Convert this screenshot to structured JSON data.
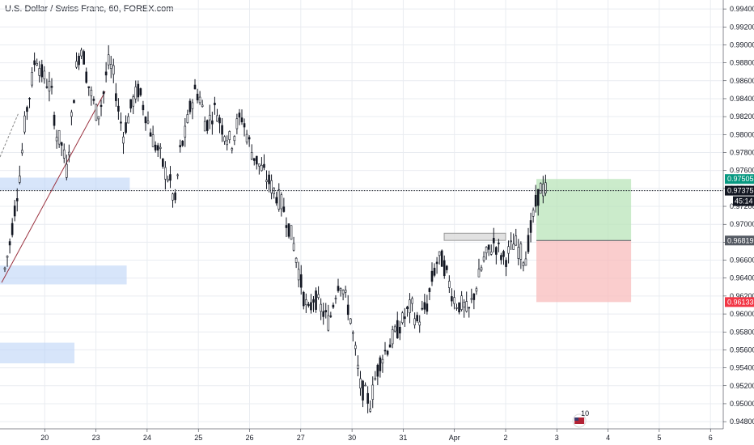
{
  "header": {
    "title": "U.S. Dollar / Swiss Franc, 60, FOREX.com"
  },
  "colors": {
    "up": "#26a69a",
    "candle": "#131722",
    "grid": "#e9ecf1",
    "zone": "#bcd3f7",
    "profit": "#b9e4b9",
    "loss": "#f8bcbc",
    "badge_green": "#089981",
    "badge_red": "#f23645",
    "badge_gray": "#555a63",
    "trendline": "#9b3340"
  },
  "chart_data": {
    "type": "candlestick",
    "title": "U.S. Dollar / Swiss Franc, 60, FOREX.com",
    "x_tick_labels": [
      "20",
      "23",
      "24",
      "25",
      "26",
      "27",
      "30",
      "31",
      "Apr",
      "2",
      "3",
      "4",
      "5",
      "6"
    ],
    "y_tick_labels": [
      "0.99400",
      "0.99200",
      "0.99000",
      "0.98800",
      "0.98600",
      "0.98400",
      "0.98200",
      "0.98000",
      "0.97800",
      "0.97600",
      "0.97400",
      "0.97200",
      "0.97000",
      "0.96800",
      "0.96600",
      "0.96400",
      "0.96200",
      "0.96000",
      "0.95800",
      "0.95600",
      "0.95400",
      "0.95200",
      "0.95000",
      "0.94800"
    ],
    "y_range": [
      0.9472,
      0.995
    ],
    "price_path": [
      [
        0.965,
        0.968
      ],
      [
        0.972,
        0.976
      ],
      [
        0.982,
        0.985
      ],
      [
        0.989,
        0.987
      ],
      [
        0.986,
        0.985
      ],
      [
        0.98,
        0.979
      ],
      [
        0.976,
        0.982
      ],
      [
        0.988,
        0.99
      ],
      [
        0.986,
        0.984
      ],
      [
        0.982,
        0.984
      ],
      [
        0.988,
        0.987
      ],
      [
        0.983,
        0.98
      ],
      [
        0.982,
        0.984
      ],
      [
        0.985,
        0.983
      ],
      [
        0.981,
        0.979
      ],
      [
        0.978,
        0.976
      ],
      [
        0.975,
        0.972
      ],
      [
        0.978,
        0.98
      ],
      [
        0.983,
        0.985
      ],
      [
        0.984,
        0.981
      ],
      [
        0.982,
        0.983
      ],
      [
        0.981,
        0.98
      ],
      [
        0.979,
        0.981
      ],
      [
        0.982,
        0.98
      ],
      [
        0.978,
        0.977
      ],
      [
        0.976,
        0.975
      ],
      [
        0.974,
        0.973
      ],
      [
        0.972,
        0.97
      ],
      [
        0.968,
        0.965
      ],
      [
        0.962,
        0.96
      ],
      [
        0.962,
        0.961
      ],
      [
        0.96,
        0.959
      ],
      [
        0.962,
        0.964
      ],
      [
        0.962,
        0.96
      ],
      [
        0.956,
        0.952
      ],
      [
        0.951,
        0.95
      ],
      [
        0.953,
        0.955
      ],
      [
        0.956,
        0.957
      ],
      [
        0.958,
        0.959
      ],
      [
        0.96,
        0.961
      ],
      [
        0.959,
        0.96
      ],
      [
        0.961,
        0.964
      ],
      [
        0.966,
        0.966
      ],
      [
        0.964,
        0.962
      ],
      [
        0.961,
        0.961
      ],
      [
        0.96,
        0.962
      ],
      [
        0.964,
        0.966
      ],
      [
        0.967,
        0.968
      ],
      [
        0.967,
        0.966
      ],
      [
        0.967,
        0.968
      ],
      [
        0.967,
        0.966
      ],
      [
        0.969,
        0.972
      ],
      [
        0.974,
        0.9738
      ]
    ],
    "price_levels": {
      "take_profit": {
        "label": "0.97505",
        "value": 0.97505
      },
      "current": {
        "label": "0.97375",
        "value": 0.97375
      },
      "entry": {
        "label": "0.96819",
        "value": 0.96819
      },
      "stop_loss": {
        "label": "0.96133",
        "value": 0.96133
      }
    },
    "countdown": "45:14",
    "zones": [
      {
        "from_day": 0,
        "to_day": 2.66,
        "low": 0.9738,
        "high": 0.9752
      },
      {
        "from_day": 0,
        "to_day": 2.6,
        "low": 0.9633,
        "high": 0.9654
      },
      {
        "from_day": 0,
        "to_day": 1.58,
        "low": 0.9545,
        "high": 0.9568
      },
      {
        "from_day": 8.8,
        "to_day": 10.0,
        "low": 0.9682,
        "high": 0.969
      }
    ],
    "position": {
      "from_day": 10.6,
      "to_day": 12.45
    },
    "event_marker": {
      "label": "10",
      "day": 10.65
    }
  }
}
